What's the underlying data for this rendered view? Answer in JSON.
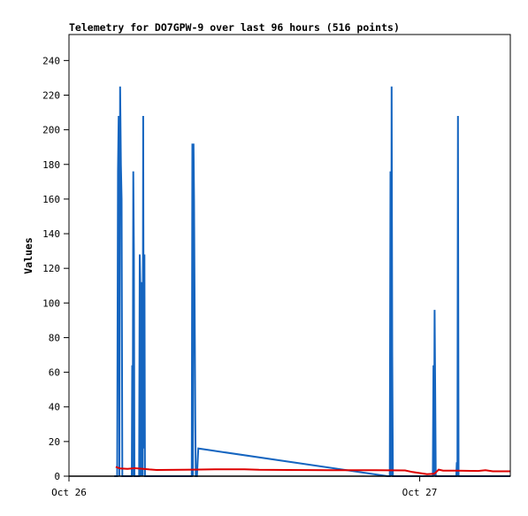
{
  "chart_data": {
    "type": "line",
    "title": "Telemetry for DO7GPW-9 over last 96 hours (516 points)",
    "xlabel": "",
    "ylabel": "Values",
    "x_ticks": [
      "Oct 26",
      "Oct 27"
    ],
    "x_tick_hours": [
      0,
      24
    ],
    "xlim_hours": [
      0,
      30.2
    ],
    "ylim": [
      0,
      255
    ],
    "y_ticks": [
      0,
      20,
      40,
      60,
      80,
      100,
      120,
      140,
      160,
      180,
      200,
      220,
      240
    ],
    "grid": false,
    "legend": "none",
    "series": [
      {
        "color": "#1565c0",
        "points": [
          [
            3.1,
            0
          ],
          [
            3.3,
            0
          ],
          [
            3.35,
            176
          ],
          [
            3.4,
            208
          ],
          [
            3.45,
            0
          ],
          [
            3.5,
            225
          ],
          [
            3.55,
            180
          ],
          [
            3.6,
            160
          ],
          [
            3.65,
            0
          ],
          [
            4.3,
            0
          ],
          [
            4.33,
            64
          ],
          [
            4.36,
            0
          ],
          [
            4.4,
            176
          ],
          [
            4.44,
            128
          ],
          [
            4.48,
            0
          ],
          [
            4.8,
            0
          ],
          [
            4.84,
            128
          ],
          [
            4.88,
            112
          ],
          [
            4.92,
            0
          ],
          [
            4.96,
            32
          ],
          [
            5.0,
            112
          ],
          [
            5.04,
            0
          ],
          [
            5.08,
            208
          ],
          [
            5.12,
            16
          ],
          [
            5.16,
            128
          ],
          [
            5.2,
            0
          ],
          [
            8.4,
            0
          ],
          [
            8.44,
            192
          ],
          [
            8.48,
            0
          ],
          [
            8.52,
            192
          ],
          [
            8.56,
            160
          ],
          [
            8.6,
            96
          ],
          [
            8.64,
            32
          ],
          [
            8.68,
            0
          ],
          [
            8.76,
            0
          ],
          [
            8.85,
            16
          ],
          [
            21.8,
            0
          ],
          [
            21.95,
            0
          ],
          [
            22.0,
            176
          ],
          [
            22.04,
            0
          ],
          [
            22.08,
            225
          ],
          [
            22.12,
            72
          ],
          [
            22.16,
            0
          ],
          [
            24.9,
            0
          ],
          [
            24.94,
            64
          ],
          [
            24.98,
            0
          ],
          [
            25.02,
            96
          ],
          [
            25.06,
            48
          ],
          [
            25.1,
            0
          ],
          [
            26.5,
            0
          ],
          [
            26.54,
            8
          ],
          [
            26.58,
            0
          ],
          [
            26.62,
            208
          ],
          [
            26.66,
            0
          ],
          [
            30.2,
            0
          ]
        ]
      },
      {
        "color": "#dd0000",
        "points": [
          [
            3.2,
            5.3
          ],
          [
            3.5,
            4.5
          ],
          [
            4.0,
            4.2
          ],
          [
            4.5,
            4.6
          ],
          [
            5.0,
            4.3
          ],
          [
            5.5,
            3.9
          ],
          [
            6.0,
            3.6
          ],
          [
            8.5,
            3.8
          ],
          [
            10.0,
            4.0
          ],
          [
            12.0,
            4.0
          ],
          [
            13.0,
            3.7
          ],
          [
            15.0,
            3.6
          ],
          [
            18.0,
            3.5
          ],
          [
            21.0,
            3.4
          ],
          [
            23.0,
            3.3
          ],
          [
            23.5,
            2.4
          ],
          [
            24.0,
            1.8
          ],
          [
            24.5,
            1.2
          ],
          [
            25.0,
            1.4
          ],
          [
            25.3,
            3.8
          ],
          [
            25.6,
            3.2
          ],
          [
            26.5,
            3.2
          ],
          [
            28.0,
            3.0
          ],
          [
            28.5,
            3.4
          ],
          [
            29.0,
            2.8
          ],
          [
            30.2,
            2.8
          ]
        ]
      },
      {
        "color": "#000000",
        "points": [
          [
            0,
            0
          ],
          [
            30.2,
            0
          ]
        ]
      }
    ]
  }
}
